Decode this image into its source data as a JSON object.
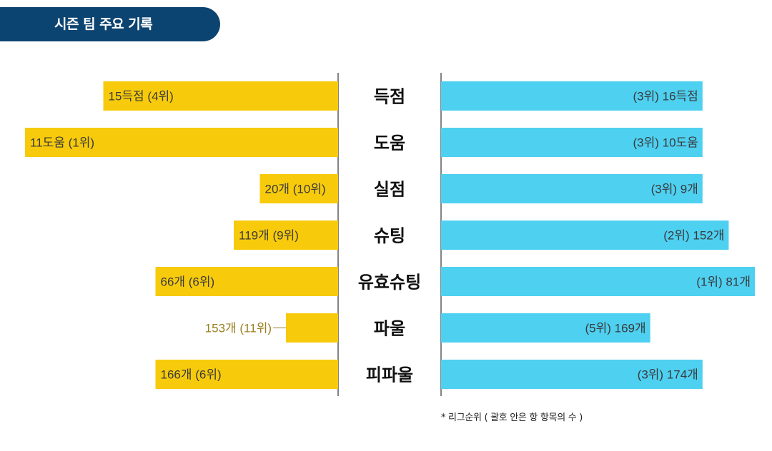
{
  "header": {
    "title": "시즌 팀 주요 기록"
  },
  "chart_data": {
    "type": "bar",
    "orientation": "horizontal-diverging",
    "categories": [
      "득점",
      "도움",
      "실점",
      "슈팅",
      "유효슈팅",
      "파울",
      "피파울"
    ],
    "series": [
      {
        "color": "#f7cb0c",
        "values": [
          15,
          11,
          20,
          119,
          66,
          153,
          166
        ],
        "units": [
          "득점",
          "도움",
          "개",
          "개",
          "개",
          "개",
          "개"
        ],
        "ranks": [
          4,
          1,
          10,
          9,
          6,
          11,
          6
        ],
        "labels": [
          "15득점 (4위)",
          "11도움 (1위)",
          "20개 (10위)",
          "119개 (9위)",
          "66개 (6위)",
          "153개 (11위)",
          "166개 (6위)"
        ]
      },
      {
        "color": "#4ed0f1",
        "values": [
          16,
          10,
          9,
          152,
          81,
          169,
          174
        ],
        "units": [
          "득점",
          "도움",
          "개",
          "개",
          "개",
          "개",
          "개"
        ],
        "ranks": [
          3,
          3,
          3,
          2,
          1,
          5,
          3
        ],
        "labels": [
          "(3위) 16득점",
          "(3위) 10도움",
          "(3위) 9개",
          "(2위) 152개",
          "(1위) 81개",
          "(5위) 169개",
          "(3위) 174개"
        ]
      }
    ],
    "footnote": "* 리그순위 ( 괄호 안은 항 항목의 수 )"
  },
  "colors": {
    "header_bg": "#0c4471",
    "left_bar": "#f7cb0c",
    "right_bar": "#4ed0f1"
  }
}
